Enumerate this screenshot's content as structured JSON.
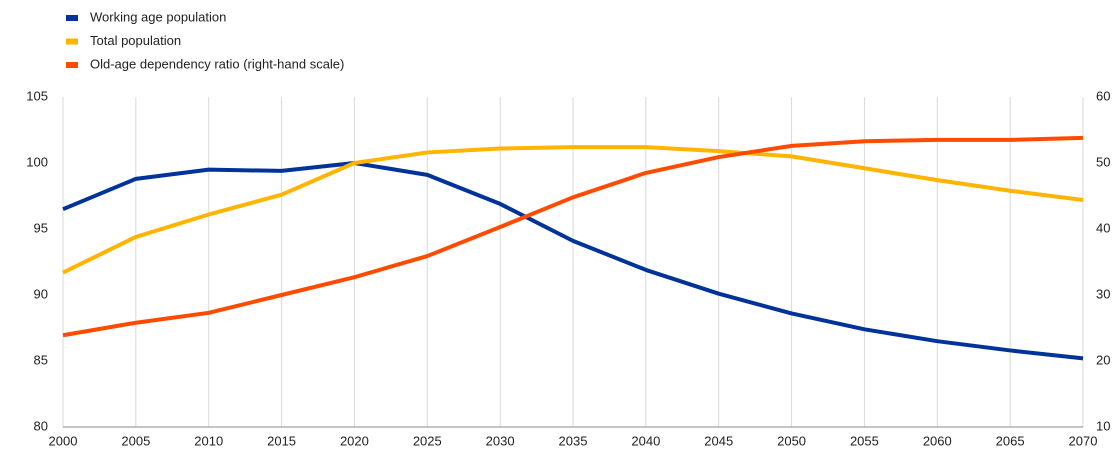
{
  "chart_data": {
    "type": "line",
    "x": [
      2000,
      2005,
      2010,
      2015,
      2020,
      2025,
      2030,
      2035,
      2040,
      2045,
      2050,
      2055,
      2060,
      2065,
      2070
    ],
    "series": [
      {
        "name": "Working age population",
        "color": "#003399",
        "values": [
          96.5,
          98.8,
          99.5,
          99.4,
          100,
          99.1,
          96.9,
          94.1,
          91.9,
          90.1,
          88.6,
          87.4,
          86.5,
          85.8,
          85.2
        ]
      },
      {
        "name": "Total population",
        "color": "#ffb400",
        "values": [
          91.7,
          94.4,
          96.1,
          97.6,
          100,
          100.8,
          101.1,
          101.2,
          101.2,
          100.9,
          100.5,
          99.6,
          98.7,
          97.9,
          97.2
        ]
      },
      {
        "name": "Old-age dependency ratio (right-hand scale)",
        "color": "#ff4b00",
        "axis": "y2",
        "values": [
          23.9,
          25.8,
          27.3,
          30,
          32.7,
          35.9,
          40.3,
          44.8,
          48.5,
          50.9,
          52.6,
          53.3,
          53.5,
          53.5,
          53.8
        ]
      }
    ],
    "xlim": [
      2000,
      2070
    ],
    "xticks": [
      2000,
      2005,
      2010,
      2015,
      2020,
      2025,
      2030,
      2035,
      2040,
      2045,
      2050,
      2055,
      2060,
      2065,
      2070
    ],
    "ylim": [
      80,
      105
    ],
    "yticks": [
      80,
      85,
      90,
      95,
      100,
      105
    ],
    "y2lim": [
      10,
      60
    ],
    "y2ticks": [
      10,
      20,
      30,
      40,
      50,
      60
    ],
    "grid": true,
    "legend": "top-left"
  }
}
